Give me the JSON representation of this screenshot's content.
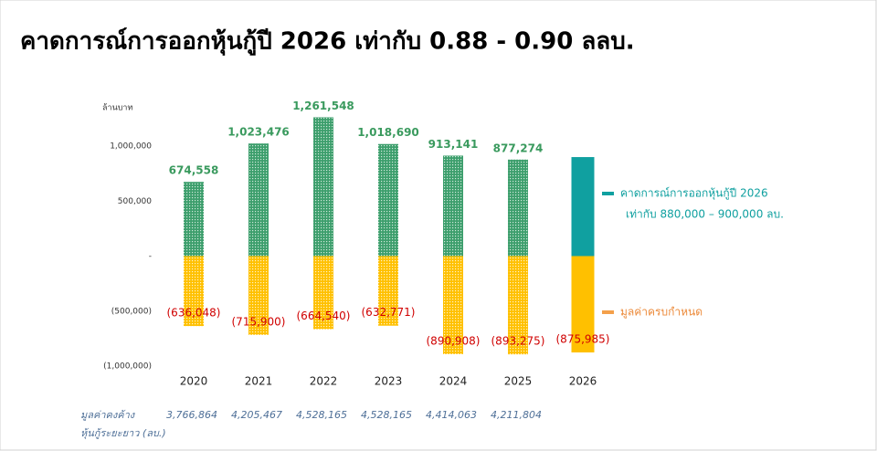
{
  "chart_data": {
    "type": "bar",
    "title": "คาดการณ์การออกหุ้นกู้ปี 2026 เท่ากับ 0.88 - 0.90 ลลบ.",
    "y_label": "ล้านบาท",
    "categories": [
      "2020",
      "2021",
      "2022",
      "2023",
      "2024",
      "2025",
      "2026"
    ],
    "series": [
      {
        "color": "#3c9e6c",
        "label_color": "#3a9a5e",
        "style": "hatch",
        "values": [
          674558,
          1023476,
          1261548,
          1018690,
          913141,
          877274,
          null
        ],
        "value_labels": [
          "674,558",
          "1,023,476",
          "1,261,548",
          "1,018,690",
          "913,141",
          "877,274",
          null
        ]
      },
      {
        "name": "คาดการณ์การออกหุ้นกู้ปี 2026",
        "legend_note": "เท่ากับ 880,000 – 900,000 ลบ.",
        "color": "#10a0a0",
        "legend_text_color": "#10a0a0",
        "style": "solid",
        "values": [
          null,
          null,
          null,
          null,
          null,
          null,
          900000
        ]
      },
      {
        "name": "มูลค่าครบกำหนด",
        "color": "#ffc000",
        "legend_color": "#f4a04a",
        "legend_text_color": "#ec8a3a",
        "label_color": "#d00000",
        "styles": [
          "hatch",
          "hatch",
          "hatch",
          "hatch",
          "hatch",
          "hatch",
          "solid"
        ],
        "values": [
          -636048,
          -715900,
          -664540,
          -632771,
          -890908,
          -893275,
          -875985
        ],
        "value_labels": [
          "(636,048)",
          "(715,900)",
          "(664,540)",
          "(632,771)",
          "(890,908)",
          "(893,275)",
          "(875,985)"
        ]
      }
    ],
    "ylim": [
      -1000000,
      1000000
    ],
    "yticks": [
      {
        "value": -1000000,
        "label": "(1,000,000)"
      },
      {
        "value": -500000,
        "label": "(500,000)"
      },
      {
        "value": 0,
        "label": "-"
      },
      {
        "value": 500000,
        "label": "500,000"
      },
      {
        "value": 1000000,
        "label": "1,000,000"
      }
    ],
    "footer_row": {
      "label": [
        "มูลค่าคงค้าง",
        "หุ้นกู้ระยะยาว (ลบ.)"
      ],
      "values": [
        "3,766,864",
        "4,205,467",
        "4,528,165",
        "4,528,165",
        "4,414,063",
        "4,211,804"
      ]
    }
  }
}
